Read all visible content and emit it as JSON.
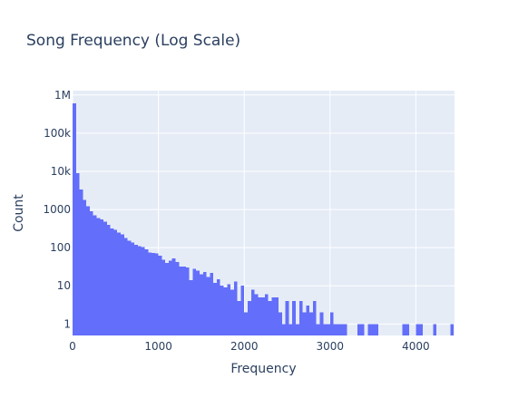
{
  "chart_data": {
    "type": "bar",
    "title": "Song Frequency (Log Scale)",
    "xlabel": "Frequency",
    "ylabel": "Count",
    "y_scale": "log",
    "xlim": [
      0,
      4450
    ],
    "ylim": [
      0.5,
      1300000
    ],
    "bin_width": 40,
    "grid": true,
    "legend": "none",
    "colors": {
      "bar": "#636efa",
      "plot_bg": "#e5ecf6",
      "grid": "#ffffff",
      "text": "#2a3f5f"
    },
    "x_ticks": [
      {
        "value": 0,
        "label": "0"
      },
      {
        "value": 1000,
        "label": "1000"
      },
      {
        "value": 2000,
        "label": "2000"
      },
      {
        "value": 3000,
        "label": "3000"
      },
      {
        "value": 4000,
        "label": "4000"
      }
    ],
    "y_ticks": [
      {
        "value": 1,
        "label": "1"
      },
      {
        "value": 10,
        "label": "10"
      },
      {
        "value": 100,
        "label": "100"
      },
      {
        "value": 1000,
        "label": "1000"
      },
      {
        "value": 10000,
        "label": "10k"
      },
      {
        "value": 100000,
        "label": "100k"
      },
      {
        "value": 1000000,
        "label": "1M"
      }
    ],
    "bins": [
      {
        "x": 0,
        "count": 600000
      },
      {
        "x": 40,
        "count": 9000
      },
      {
        "x": 80,
        "count": 3300
      },
      {
        "x": 120,
        "count": 1800
      },
      {
        "x": 160,
        "count": 1200
      },
      {
        "x": 200,
        "count": 900
      },
      {
        "x": 240,
        "count": 700
      },
      {
        "x": 280,
        "count": 600
      },
      {
        "x": 320,
        "count": 550
      },
      {
        "x": 360,
        "count": 480
      },
      {
        "x": 400,
        "count": 400
      },
      {
        "x": 440,
        "count": 320
      },
      {
        "x": 480,
        "count": 290
      },
      {
        "x": 520,
        "count": 250
      },
      {
        "x": 560,
        "count": 220
      },
      {
        "x": 600,
        "count": 180
      },
      {
        "x": 640,
        "count": 150
      },
      {
        "x": 680,
        "count": 135
      },
      {
        "x": 720,
        "count": 120
      },
      {
        "x": 760,
        "count": 110
      },
      {
        "x": 800,
        "count": 105
      },
      {
        "x": 840,
        "count": 90
      },
      {
        "x": 880,
        "count": 75
      },
      {
        "x": 920,
        "count": 72
      },
      {
        "x": 960,
        "count": 70
      },
      {
        "x": 1000,
        "count": 62
      },
      {
        "x": 1040,
        "count": 48
      },
      {
        "x": 1080,
        "count": 40
      },
      {
        "x": 1120,
        "count": 46
      },
      {
        "x": 1160,
        "count": 52
      },
      {
        "x": 1200,
        "count": 42
      },
      {
        "x": 1240,
        "count": 32
      },
      {
        "x": 1280,
        "count": 32
      },
      {
        "x": 1320,
        "count": 30
      },
      {
        "x": 1360,
        "count": 14
      },
      {
        "x": 1400,
        "count": 28
      },
      {
        "x": 1440,
        "count": 25
      },
      {
        "x": 1480,
        "count": 20
      },
      {
        "x": 1520,
        "count": 23
      },
      {
        "x": 1560,
        "count": 17
      },
      {
        "x": 1600,
        "count": 22
      },
      {
        "x": 1640,
        "count": 12
      },
      {
        "x": 1680,
        "count": 15
      },
      {
        "x": 1720,
        "count": 10
      },
      {
        "x": 1760,
        "count": 9
      },
      {
        "x": 1800,
        "count": 11
      },
      {
        "x": 1840,
        "count": 8
      },
      {
        "x": 1880,
        "count": 13
      },
      {
        "x": 1920,
        "count": 4
      },
      {
        "x": 1960,
        "count": 10
      },
      {
        "x": 2000,
        "count": 2
      },
      {
        "x": 2040,
        "count": 4
      },
      {
        "x": 2080,
        "count": 8
      },
      {
        "x": 2120,
        "count": 6
      },
      {
        "x": 2160,
        "count": 5
      },
      {
        "x": 2200,
        "count": 5
      },
      {
        "x": 2240,
        "count": 6
      },
      {
        "x": 2280,
        "count": 4
      },
      {
        "x": 2320,
        "count": 5
      },
      {
        "x": 2360,
        "count": 5
      },
      {
        "x": 2400,
        "count": 2
      },
      {
        "x": 2440,
        "count": 1
      },
      {
        "x": 2480,
        "count": 4
      },
      {
        "x": 2520,
        "count": 1
      },
      {
        "x": 2560,
        "count": 4
      },
      {
        "x": 2600,
        "count": 1
      },
      {
        "x": 2640,
        "count": 4
      },
      {
        "x": 2680,
        "count": 2
      },
      {
        "x": 2720,
        "count": 3
      },
      {
        "x": 2760,
        "count": 2
      },
      {
        "x": 2800,
        "count": 4
      },
      {
        "x": 2840,
        "count": 1
      },
      {
        "x": 2880,
        "count": 2
      },
      {
        "x": 2920,
        "count": 1
      },
      {
        "x": 2960,
        "count": 1
      },
      {
        "x": 3000,
        "count": 2
      },
      {
        "x": 3040,
        "count": 1
      },
      {
        "x": 3080,
        "count": 1
      },
      {
        "x": 3120,
        "count": 1
      },
      {
        "x": 3160,
        "count": 1
      },
      {
        "x": 3320,
        "count": 1
      },
      {
        "x": 3360,
        "count": 1
      },
      {
        "x": 3440,
        "count": 1
      },
      {
        "x": 3480,
        "count": 1
      },
      {
        "x": 3520,
        "count": 1
      },
      {
        "x": 3840,
        "count": 1
      },
      {
        "x": 3880,
        "count": 1
      },
      {
        "x": 4000,
        "count": 1
      },
      {
        "x": 4040,
        "count": 1
      },
      {
        "x": 4200,
        "count": 1
      },
      {
        "x": 4400,
        "count": 1
      }
    ]
  }
}
